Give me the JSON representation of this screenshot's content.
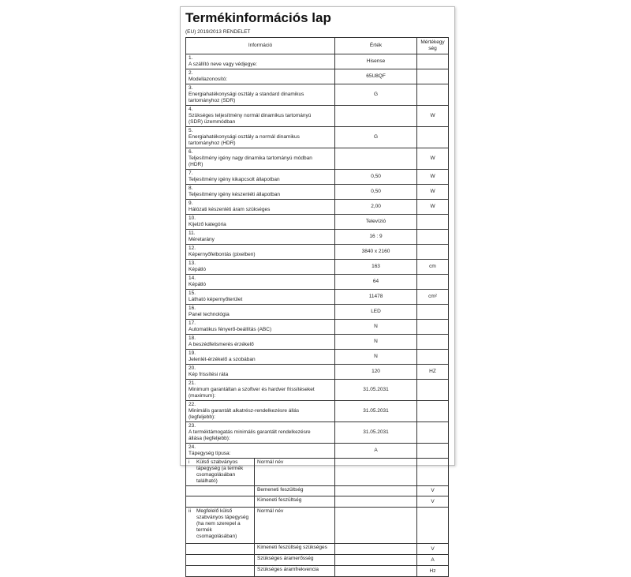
{
  "title": "Termékinformációs lap",
  "subtitle": "(EU) 2019/2013 RENDELET",
  "headers": {
    "info": "Információ",
    "value": "Érték",
    "unit": "Mértékegység"
  },
  "rows": [
    {
      "n": "1.",
      "label": "A szállító neve vagy védjegye:",
      "value": "Hisense",
      "unit": ""
    },
    {
      "n": "2.",
      "label": "Modellazonosító:",
      "value": "65U8QF",
      "unit": ""
    },
    {
      "n": "3.",
      "label": "Energiahatékonysági osztály a standard dinamikus tartományhoz (SDR)",
      "value": "G",
      "unit": ""
    },
    {
      "n": "4.",
      "label": "Szükséges teljesítmény normál dinamikus tartományú (SDR) üzemmódban",
      "value": "",
      "unit": "W"
    },
    {
      "n": "5.",
      "label": "Energiahatékonysági osztály a normál dinamikus tartományhoz (HDR)",
      "value": "G",
      "unit": ""
    },
    {
      "n": "6.",
      "label": "Teljesítmény igény nagy dinamika tartományú módban (HDR)",
      "value": "",
      "unit": "W"
    },
    {
      "n": "7.",
      "label": "Teljesítmény igény kikapcsolt állapotban",
      "value": "0,50",
      "unit": "W"
    },
    {
      "n": "8.",
      "label": "Teljesítmény igény készenléti állapotban",
      "value": "0,50",
      "unit": "W"
    },
    {
      "n": "9.",
      "label": "Hálózati készenléti áram szükséges",
      "value": "2,00",
      "unit": "W"
    },
    {
      "n": "10.",
      "label": "Kijelző kategória",
      "value": "Televízió",
      "unit": ""
    },
    {
      "n": "11.",
      "label": "Méretarány",
      "value": "16 : 9",
      "unit": ""
    },
    {
      "n": "12.",
      "label": "Képernyőfelbontás (pixelben)",
      "value": "3840 x 2160",
      "unit": ""
    },
    {
      "n": "13.",
      "label": "Képátló",
      "value": "163",
      "unit": "cm"
    },
    {
      "n": "14.",
      "label": "Képátló",
      "value": "64",
      "unit": ""
    },
    {
      "n": "15.",
      "label": "Látható képernyőterület",
      "value": "11478",
      "unit": "cm²"
    },
    {
      "n": "16.",
      "label": "Panel technológia",
      "value": "LED",
      "unit": ""
    },
    {
      "n": "17.",
      "label": "Automatikus fényerő-beállítás (ABC)",
      "value": "N",
      "unit": ""
    },
    {
      "n": "18.",
      "label": "A beszédfelismerés érzékelő",
      "value": "N",
      "unit": ""
    },
    {
      "n": "19.",
      "label": "Jelenlét-érzékelő a szobában",
      "value": "N",
      "unit": ""
    },
    {
      "n": "20.",
      "label": "Kép frissítési ráta",
      "value": "120",
      "unit": "HZ"
    },
    {
      "n": "21.",
      "label": "Minimum garantáltan a szoftver és hardver frissítéseket (maximum):",
      "value": "31.05.2031",
      "unit": ""
    },
    {
      "n": "22.",
      "label": "Minimális garantált alkatrész-rendelkezésre állás (legfeljebb):",
      "value": "31.05.2031",
      "unit": ""
    },
    {
      "n": "23.",
      "label": "A terméktámogatás minimális garantált rendelkezésre állása (legfeljebb):",
      "value": "31.05.2031",
      "unit": ""
    },
    {
      "n": "24.",
      "label": "Tápegység típusa:",
      "value": "A",
      "unit": ""
    }
  ],
  "psu": [
    {
      "n": "i",
      "label": "Külső szabványos tápegység (a termék csomagolásában található)",
      "items": [
        {
          "name": "Normál név",
          "value": "",
          "unit": ""
        },
        {
          "name": "Bemeneti feszültség",
          "value": "",
          "unit": "V"
        },
        {
          "name": "Kimeneti feszültség",
          "value": "",
          "unit": "V"
        }
      ]
    },
    {
      "n": "ii",
      "label": "Megfelelő külső szabványos tápegység (ha nem szerepel a termék csomagolásában)",
      "items": [
        {
          "name": "Normál név",
          "value": "",
          "unit": ""
        },
        {
          "name": "Kimeneti feszültség szükséges",
          "value": "",
          "unit": "V"
        },
        {
          "name": "Szükséges áramerősség",
          "value": "",
          "unit": "A"
        },
        {
          "name": "Szükséges áramfrekvencia",
          "value": "",
          "unit": "Hz"
        }
      ]
    }
  ]
}
